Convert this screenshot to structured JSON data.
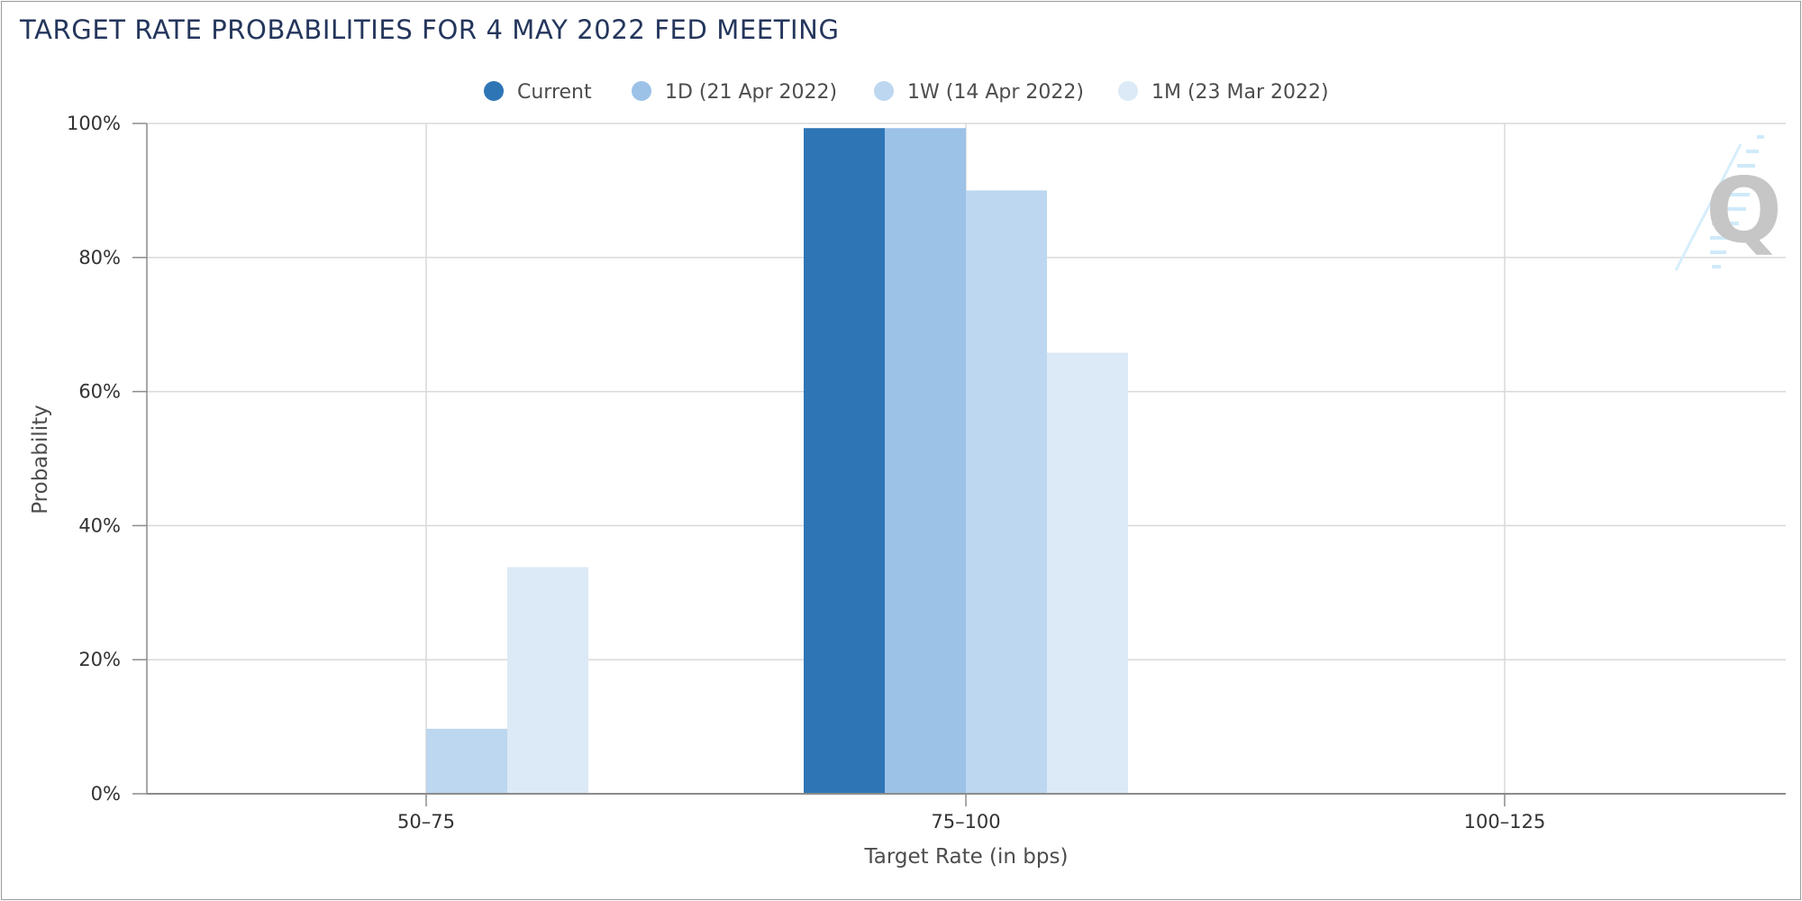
{
  "colors": {
    "current": "#2e75b6",
    "1d": "#9cc2e8",
    "1w": "#bcd7ef",
    "1m": "#dce9f6",
    "grid": "#d9d9d9",
    "axis": "#8c8c8c",
    "text": "#333333",
    "legend_text": "#4d4d4d",
    "title": "#24365c"
  },
  "watermark": {
    "icon": "q-logo-icon",
    "letter": "Q"
  },
  "chart_data": {
    "type": "bar",
    "title": "TARGET RATE PROBABILITIES FOR 4 MAY 2022 FED MEETING",
    "xlabel": "Target Rate (in bps)",
    "ylabel": "Probability",
    "categories": [
      "50-75",
      "75-100",
      "100-125"
    ],
    "category_labels": [
      "50–75",
      "75–100",
      "100–125"
    ],
    "ylim": [
      0,
      100
    ],
    "yticks": [
      0,
      20,
      40,
      60,
      80,
      100
    ],
    "ytick_labels": [
      "0%",
      "20%",
      "40%",
      "60%",
      "80%",
      "100%"
    ],
    "grid": true,
    "legend_position": "top-center",
    "series": [
      {
        "name": "Current",
        "key": "current",
        "values": [
          0,
          99.3,
          0
        ]
      },
      {
        "name": "1D (21 Apr 2022)",
        "key": "1d",
        "values": [
          0,
          99.3,
          0
        ]
      },
      {
        "name": "1W (14 Apr 2022)",
        "key": "1w",
        "values": [
          9.7,
          90.0,
          0
        ]
      },
      {
        "name": "1M (23 Mar 2022)",
        "key": "1m",
        "values": [
          33.8,
          65.8,
          0
        ]
      }
    ]
  }
}
